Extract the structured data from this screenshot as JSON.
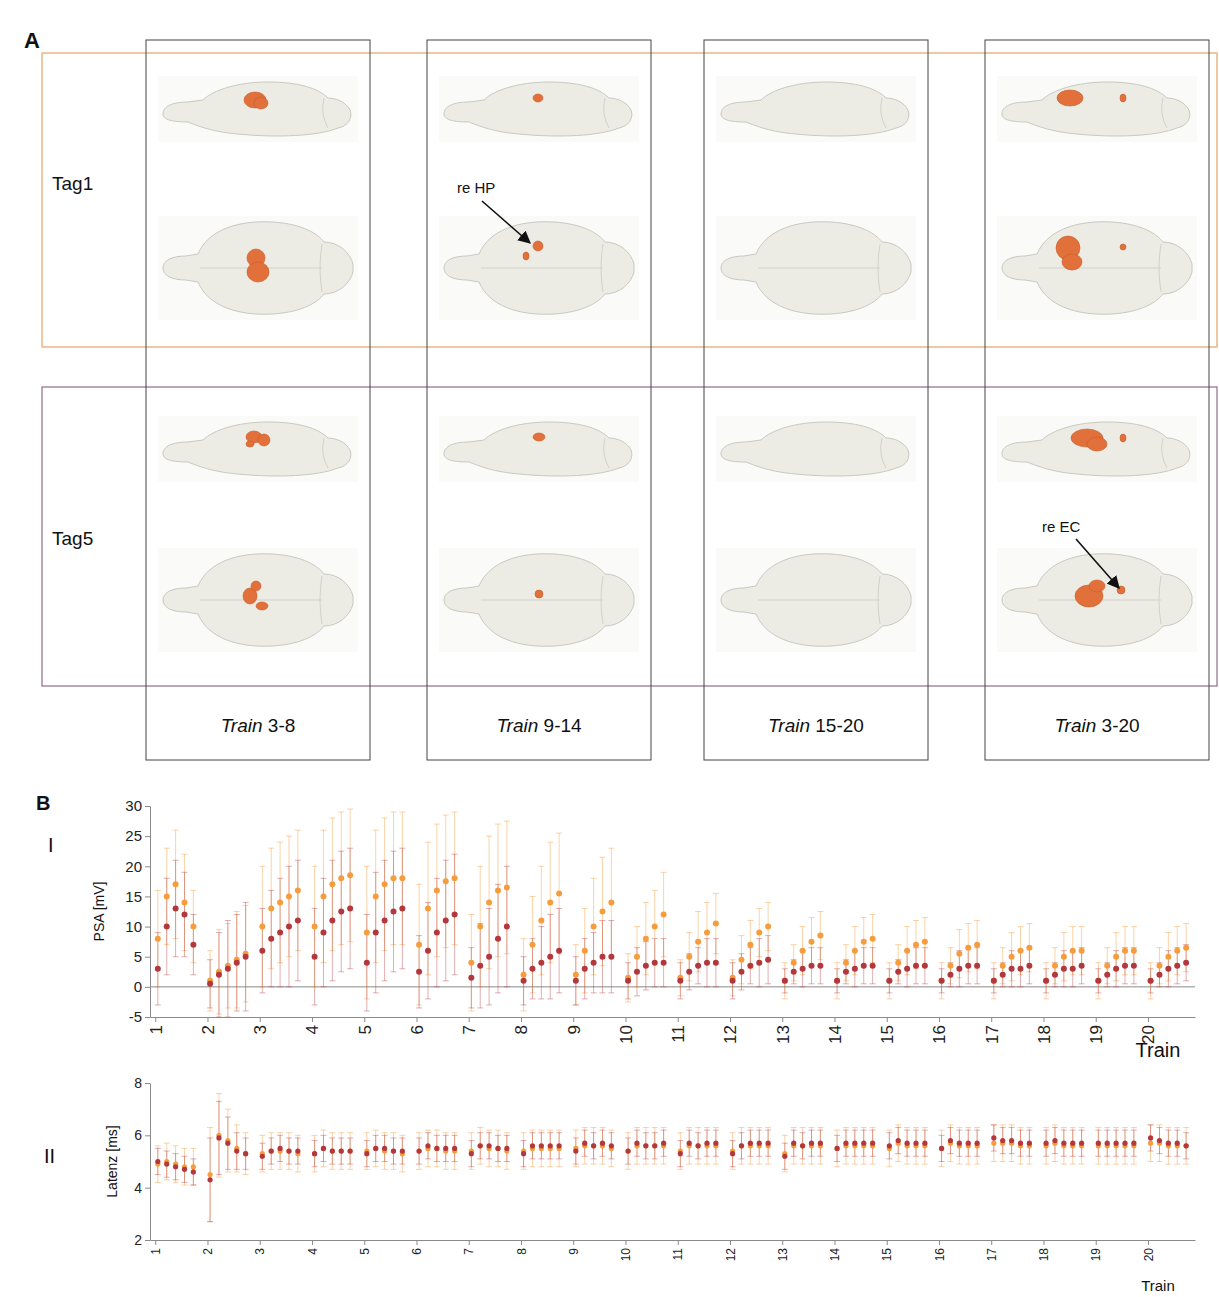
{
  "panel_a": {
    "label": "A",
    "rows": [
      "Tag1",
      "Tag5"
    ],
    "columns": [
      "Train 3-8",
      "Train 9-14",
      "Train 15-20",
      "Train 3-20"
    ],
    "annotations": [
      {
        "text": "re HP",
        "row": 0,
        "column": 1
      },
      {
        "text": "re EC",
        "row": 1,
        "column": 3
      }
    ]
  },
  "panel_b": {
    "label": "B"
  },
  "chart_data": [
    {
      "type": "scatter",
      "title": "I",
      "ylabel": "PSA [mV]",
      "xlabel": "Train",
      "x": [
        1.05,
        1.22,
        1.39,
        1.56,
        1.73,
        2.05,
        2.22,
        2.39,
        2.56,
        2.73,
        3.05,
        3.22,
        3.39,
        3.56,
        3.73,
        4.05,
        4.22,
        4.39,
        4.56,
        4.73,
        5.05,
        5.22,
        5.39,
        5.56,
        5.73,
        6.05,
        6.22,
        6.39,
        6.56,
        6.73,
        7.05,
        7.22,
        7.39,
        7.56,
        7.73,
        8.05,
        8.22,
        8.39,
        8.56,
        8.73,
        9.05,
        9.22,
        9.39,
        9.56,
        9.73,
        10.05,
        10.22,
        10.39,
        10.56,
        10.73,
        11.05,
        11.22,
        11.39,
        11.56,
        11.73,
        12.05,
        12.22,
        12.39,
        12.56,
        12.73,
        13.05,
        13.22,
        13.39,
        13.56,
        13.73,
        14.05,
        14.22,
        14.39,
        14.56,
        14.73,
        15.05,
        15.22,
        15.39,
        15.56,
        15.73,
        16.05,
        16.22,
        16.39,
        16.56,
        16.73,
        17.05,
        17.22,
        17.39,
        17.56,
        17.73,
        18.05,
        18.22,
        18.39,
        18.56,
        18.73,
        19.05,
        19.22,
        19.39,
        19.56,
        19.73,
        20.05,
        20.22,
        20.39,
        20.56,
        20.73
      ],
      "xlim": [
        0.9,
        20.9
      ],
      "xticks": [
        1,
        2,
        3,
        4,
        5,
        6,
        7,
        8,
        9,
        10,
        11,
        12,
        13,
        14,
        15,
        16,
        17,
        18,
        19,
        20
      ],
      "ylim": [
        -5,
        30
      ],
      "yticks": [
        -5,
        0,
        5,
        10,
        15,
        20,
        25,
        30
      ],
      "series": [
        {
          "color": "#f59d3d",
          "marker": "circle",
          "values": [
            8,
            15,
            17,
            14,
            10,
            1,
            2.5,
            3.5,
            4.5,
            5.5,
            10,
            13,
            14,
            15,
            16,
            10,
            15,
            17,
            18,
            18.5,
            9,
            15,
            17,
            18,
            18,
            7,
            13,
            16,
            17.5,
            18,
            4,
            10,
            14,
            16,
            16.5,
            2,
            7,
            11,
            14,
            15.5,
            2,
            6,
            10,
            12.5,
            14,
            1.5,
            5,
            8,
            10,
            12,
            1.5,
            5,
            7.5,
            9,
            10.5,
            1.5,
            4.5,
            7,
            9,
            10,
            1,
            4,
            6,
            7.5,
            8.5,
            1,
            4,
            6,
            7.5,
            8,
            1,
            4,
            6,
            7,
            7.5,
            1,
            3.5,
            5.5,
            6.5,
            7,
            1,
            3.5,
            5,
            6,
            6.5,
            1,
            3.5,
            5,
            6,
            6,
            1,
            3.5,
            5,
            6,
            6,
            1,
            3.5,
            5,
            6,
            6.5
          ],
          "errors": [
            8,
            8,
            9,
            8,
            6,
            5,
            7,
            7,
            8,
            8,
            10,
            10,
            10,
            10,
            10,
            10,
            11,
            11,
            11,
            11,
            11,
            11,
            11,
            11,
            11,
            10,
            11,
            11,
            11,
            11,
            8,
            10,
            11,
            11,
            11,
            6,
            8,
            9,
            10,
            10,
            5,
            7,
            8,
            9,
            9,
            4,
            5,
            6,
            6,
            7,
            3,
            4,
            5,
            5,
            5,
            3,
            4,
            4,
            4,
            4,
            3,
            3,
            4,
            4,
            4,
            3,
            3,
            4,
            4,
            4,
            3,
            3,
            4,
            4,
            4,
            3,
            3,
            4,
            4,
            4,
            3,
            3,
            4,
            4,
            4,
            3,
            3,
            4,
            4,
            4,
            3,
            3,
            4,
            4,
            4,
            3,
            3,
            4,
            4,
            4
          ]
        },
        {
          "color": "#b3383d",
          "marker": "circle",
          "values": [
            3,
            10,
            13,
            12,
            7,
            0.5,
            2,
            3,
            4,
            5,
            6,
            8,
            9,
            10,
            11,
            5,
            9,
            11,
            12.5,
            13,
            4,
            9,
            11,
            12.5,
            13,
            2.5,
            6,
            9,
            11,
            12,
            1.5,
            3.5,
            5,
            8,
            10,
            1,
            3,
            4,
            5,
            6,
            1,
            3,
            4,
            5,
            5,
            1,
            2.5,
            3.5,
            4,
            4,
            1,
            2.5,
            3.5,
            4,
            4,
            1,
            2.5,
            3.5,
            4,
            4.5,
            1,
            2.5,
            3,
            3.5,
            3.5,
            1,
            2.5,
            3,
            3.5,
            3.5,
            1,
            2.5,
            3,
            3.5,
            3.5,
            1,
            2,
            3,
            3.5,
            3.5,
            1,
            2,
            3,
            3,
            3.5,
            1,
            2,
            3,
            3,
            3.5,
            1,
            2,
            3,
            3.5,
            3.5,
            1,
            2,
            3,
            3.5,
            4
          ],
          "errors": [
            6,
            8,
            8,
            7,
            5,
            4,
            7,
            8,
            8,
            9,
            7,
            8,
            9,
            10,
            10,
            8,
            9,
            10,
            10,
            10,
            8,
            10,
            10,
            10,
            10,
            6,
            8,
            9,
            10,
            10,
            5,
            7,
            8,
            9,
            10,
            4,
            5,
            6,
            7,
            7,
            4,
            5,
            5,
            6,
            6,
            3,
            4,
            4,
            4,
            4,
            3,
            3,
            3,
            4,
            4,
            3,
            3,
            3,
            4,
            4,
            2,
            2,
            3,
            3,
            3,
            2,
            2,
            3,
            3,
            3,
            2,
            2,
            3,
            3,
            3,
            2,
            2,
            3,
            3,
            3,
            2,
            2,
            3,
            3,
            3,
            2,
            2,
            3,
            3,
            3,
            2,
            2,
            3,
            3,
            3,
            2,
            2,
            3,
            3,
            3
          ]
        }
      ]
    },
    {
      "type": "scatter",
      "title": "II",
      "ylabel": "Latenz [ms]",
      "xlabel": "Train",
      "x": [
        1.05,
        1.22,
        1.39,
        1.56,
        1.73,
        2.05,
        2.22,
        2.39,
        2.56,
        2.73,
        3.05,
        3.22,
        3.39,
        3.56,
        3.73,
        4.05,
        4.22,
        4.39,
        4.56,
        4.73,
        5.05,
        5.22,
        5.39,
        5.56,
        5.73,
        6.05,
        6.22,
        6.39,
        6.56,
        6.73,
        7.05,
        7.22,
        7.39,
        7.56,
        7.73,
        8.05,
        8.22,
        8.39,
        8.56,
        8.73,
        9.05,
        9.22,
        9.39,
        9.56,
        9.73,
        10.05,
        10.22,
        10.39,
        10.56,
        10.73,
        11.05,
        11.22,
        11.39,
        11.56,
        11.73,
        12.05,
        12.22,
        12.39,
        12.56,
        12.73,
        13.05,
        13.22,
        13.39,
        13.56,
        13.73,
        14.05,
        14.22,
        14.39,
        14.56,
        14.73,
        15.05,
        15.22,
        15.39,
        15.56,
        15.73,
        16.05,
        16.22,
        16.39,
        16.56,
        16.73,
        17.05,
        17.22,
        17.39,
        17.56,
        17.73,
        18.05,
        18.22,
        18.39,
        18.56,
        18.73,
        19.05,
        19.22,
        19.39,
        19.56,
        19.73,
        20.05,
        20.22,
        20.39,
        20.56,
        20.73
      ],
      "xlim": [
        0.9,
        20.9
      ],
      "xticks": [
        1,
        2,
        3,
        4,
        5,
        6,
        7,
        8,
        9,
        10,
        11,
        12,
        13,
        14,
        15,
        16,
        17,
        18,
        19,
        20
      ],
      "ylim": [
        2,
        8
      ],
      "yticks": [
        2,
        4,
        6,
        8
      ],
      "series": [
        {
          "color": "#f59d3d",
          "marker": "circle",
          "values": [
            4.9,
            5.0,
            4.9,
            4.8,
            4.8,
            4.5,
            6.0,
            5.8,
            5.5,
            5.3,
            5.3,
            5.4,
            5.4,
            5.4,
            5.3,
            5.3,
            5.5,
            5.4,
            5.4,
            5.4,
            5.4,
            5.5,
            5.4,
            5.4,
            5.3,
            5.4,
            5.5,
            5.5,
            5.4,
            5.4,
            5.4,
            5.6,
            5.5,
            5.5,
            5.4,
            5.4,
            5.5,
            5.5,
            5.5,
            5.5,
            5.5,
            5.6,
            5.6,
            5.6,
            5.5,
            5.4,
            5.6,
            5.6,
            5.6,
            5.6,
            5.4,
            5.6,
            5.6,
            5.6,
            5.6,
            5.4,
            5.6,
            5.6,
            5.6,
            5.6,
            5.3,
            5.6,
            5.6,
            5.6,
            5.6,
            5.5,
            5.6,
            5.6,
            5.6,
            5.6,
            5.5,
            5.7,
            5.6,
            5.6,
            5.6,
            5.5,
            5.7,
            5.6,
            5.6,
            5.6,
            5.7,
            5.7,
            5.7,
            5.6,
            5.6,
            5.6,
            5.7,
            5.6,
            5.6,
            5.6,
            5.6,
            5.6,
            5.6,
            5.6,
            5.6,
            5.7,
            5.7,
            5.6,
            5.6,
            5.6
          ],
          "errors": [
            0.7,
            0.7,
            0.7,
            0.7,
            0.7,
            1.8,
            1.6,
            1.2,
            0.9,
            0.8,
            0.7,
            0.7,
            0.7,
            0.7,
            0.7,
            0.7,
            0.7,
            0.7,
            0.7,
            0.7,
            0.7,
            0.7,
            0.7,
            0.7,
            0.7,
            0.7,
            0.7,
            0.7,
            0.7,
            0.7,
            0.7,
            0.7,
            0.7,
            0.7,
            0.7,
            0.7,
            0.7,
            0.7,
            0.7,
            0.7,
            0.7,
            0.7,
            0.7,
            0.7,
            0.7,
            0.7,
            0.7,
            0.7,
            0.7,
            0.7,
            0.7,
            0.7,
            0.7,
            0.7,
            0.7,
            0.7,
            0.7,
            0.7,
            0.7,
            0.7,
            0.7,
            0.7,
            0.7,
            0.7,
            0.7,
            0.7,
            0.7,
            0.7,
            0.7,
            0.7,
            0.7,
            0.7,
            0.7,
            0.7,
            0.7,
            0.7,
            0.7,
            0.7,
            0.7,
            0.7,
            0.7,
            0.7,
            0.7,
            0.7,
            0.7,
            0.7,
            0.7,
            0.7,
            0.7,
            0.7,
            0.7,
            0.7,
            0.7,
            0.7,
            0.7,
            0.7,
            0.7,
            0.7,
            0.7,
            0.7
          ]
        },
        {
          "color": "#b3383d",
          "marker": "circle",
          "values": [
            5.0,
            4.9,
            4.8,
            4.7,
            4.6,
            4.3,
            5.9,
            5.7,
            5.4,
            5.3,
            5.2,
            5.4,
            5.5,
            5.4,
            5.4,
            5.3,
            5.5,
            5.4,
            5.4,
            5.4,
            5.3,
            5.5,
            5.5,
            5.4,
            5.4,
            5.4,
            5.6,
            5.5,
            5.5,
            5.5,
            5.3,
            5.6,
            5.6,
            5.5,
            5.5,
            5.3,
            5.6,
            5.6,
            5.6,
            5.6,
            5.4,
            5.7,
            5.6,
            5.7,
            5.6,
            5.4,
            5.7,
            5.6,
            5.6,
            5.7,
            5.3,
            5.7,
            5.6,
            5.7,
            5.7,
            5.3,
            5.6,
            5.7,
            5.7,
            5.7,
            5.2,
            5.7,
            5.6,
            5.7,
            5.7,
            5.5,
            5.7,
            5.7,
            5.7,
            5.7,
            5.6,
            5.8,
            5.7,
            5.7,
            5.7,
            5.5,
            5.8,
            5.7,
            5.7,
            5.7,
            5.9,
            5.8,
            5.8,
            5.7,
            5.7,
            5.7,
            5.8,
            5.7,
            5.7,
            5.7,
            5.7,
            5.7,
            5.7,
            5.7,
            5.7,
            5.9,
            5.8,
            5.7,
            5.7,
            5.6
          ],
          "errors": [
            0.5,
            0.5,
            0.5,
            0.5,
            0.5,
            1.6,
            1.4,
            1.0,
            0.7,
            0.6,
            0.5,
            0.5,
            0.5,
            0.5,
            0.5,
            0.5,
            0.5,
            0.5,
            0.5,
            0.5,
            0.5,
            0.5,
            0.5,
            0.5,
            0.5,
            0.5,
            0.5,
            0.5,
            0.5,
            0.5,
            0.5,
            0.5,
            0.5,
            0.5,
            0.5,
            0.5,
            0.5,
            0.5,
            0.5,
            0.5,
            0.5,
            0.5,
            0.5,
            0.5,
            0.5,
            0.5,
            0.5,
            0.5,
            0.5,
            0.5,
            0.5,
            0.5,
            0.5,
            0.5,
            0.5,
            0.5,
            0.5,
            0.5,
            0.5,
            0.5,
            0.5,
            0.5,
            0.5,
            0.5,
            0.5,
            0.5,
            0.5,
            0.5,
            0.5,
            0.5,
            0.5,
            0.5,
            0.5,
            0.5,
            0.5,
            0.5,
            0.5,
            0.5,
            0.5,
            0.5,
            0.5,
            0.5,
            0.5,
            0.5,
            0.5,
            0.5,
            0.5,
            0.5,
            0.5,
            0.5,
            0.5,
            0.5,
            0.5,
            0.5,
            0.5,
            0.5,
            0.5,
            0.5,
            0.5,
            0.5
          ]
        }
      ]
    }
  ]
}
